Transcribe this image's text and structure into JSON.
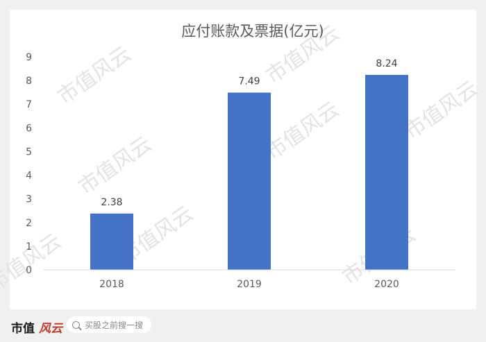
{
  "chart_data": {
    "type": "bar",
    "title": "应付账款及票据(亿元)",
    "categories": [
      "2018",
      "2019",
      "2020"
    ],
    "values": [
      2.38,
      7.49,
      8.24
    ],
    "data_labels": [
      "2.38",
      "7.49",
      "8.24"
    ],
    "ylim": [
      0,
      9
    ],
    "yticks": [
      "0",
      "1",
      "2",
      "3",
      "4",
      "5",
      "6",
      "7",
      "8",
      "9"
    ],
    "xlabel": "",
    "ylabel": "",
    "grid": false,
    "bar_color": "#4472c4"
  },
  "watermark": {
    "text": "市值风云"
  },
  "footer": {
    "brand_text": "市值",
    "brand_logo_text": "风云",
    "search_placeholder": "买股之前搜一搜"
  }
}
